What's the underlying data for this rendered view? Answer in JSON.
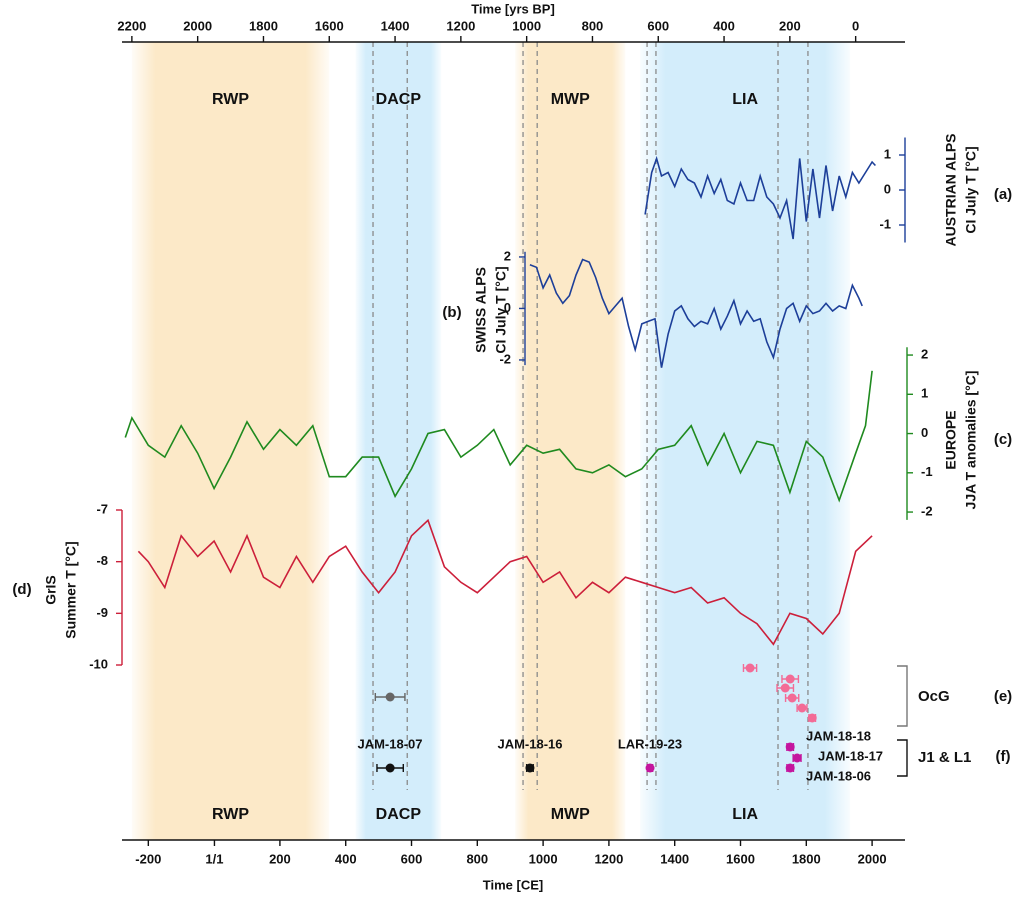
{
  "time_axes": {
    "x_label": "Time [CE]",
    "xlim": [
      -280,
      2100
    ],
    "xticks": [
      -200,
      {
        "value": 1,
        "label": "1/1"
      },
      200,
      400,
      600,
      800,
      1000,
      1200,
      1400,
      1600,
      1800,
      2000
    ],
    "x2_label": "Time [yrs BP]",
    "x2lim": [
      2230,
      -150
    ],
    "x2ticks": [
      2200,
      2000,
      1800,
      1600,
      1400,
      1200,
      1000,
      800,
      600,
      400,
      200,
      0
    ],
    "periods": [
      {
        "name": "RWP",
        "start": -250,
        "end": 350,
        "color": "#fce9c8",
        "label_color": "#9b1b1b"
      },
      {
        "name": "DACP",
        "start": 430,
        "end": 690,
        "color": "#d3edfb",
        "label_color": "#1e3fa8"
      },
      {
        "name": "MWP",
        "start": 915,
        "end": 1250,
        "color": "#fce9c8",
        "label_color": "#9b1b1b"
      },
      {
        "name": "LIA",
        "start": 1295,
        "end": 1933,
        "color": "#d3edfb",
        "label_color": "#1e3fa8"
      }
    ],
    "reference_lines": [
      483,
      587,
      939,
      982,
      1316,
      1343,
      1714,
      1805
    ],
    "reference_color": "#8a8a8a"
  },
  "chart_data": [
    {
      "type": "line",
      "label": "(a)",
      "y_label": [
        "AUSTRIAN ALPS",
        "CI July T [°C]"
      ],
      "color": "#1d3f99",
      "ylim": [
        -1.5,
        1.5
      ],
      "yticks": [
        -1,
        0,
        1
      ],
      "x": [
        1310,
        1330,
        1345,
        1360,
        1380,
        1400,
        1420,
        1440,
        1460,
        1480,
        1500,
        1520,
        1540,
        1560,
        1580,
        1600,
        1620,
        1640,
        1660,
        1680,
        1700,
        1720,
        1740,
        1760,
        1780,
        1800,
        1820,
        1840,
        1860,
        1880,
        1900,
        1920,
        1940,
        1960,
        1980,
        2000,
        2010
      ],
      "values": [
        -0.7,
        0.5,
        0.9,
        0.4,
        0.5,
        0.1,
        0.6,
        0.3,
        0.2,
        -0.2,
        0.4,
        -0.1,
        0.3,
        -0.3,
        -0.4,
        0.2,
        -0.3,
        -0.3,
        0.4,
        -0.2,
        -0.4,
        -0.8,
        -0.3,
        -1.4,
        0.9,
        -0.9,
        0.6,
        -0.8,
        0.7,
        -0.6,
        0.4,
        -0.2,
        0.5,
        0.2,
        0.5,
        0.8,
        0.7
      ]
    },
    {
      "type": "line",
      "label": "(b)",
      "y_label": [
        "SWISS ALPS",
        "CI July T [°C]"
      ],
      "color": "#1d3f99",
      "ylim": [
        -2.2,
        2.2
      ],
      "yticks": [
        -2,
        0,
        2
      ],
      "x": [
        960,
        980,
        1000,
        1020,
        1040,
        1060,
        1080,
        1100,
        1120,
        1140,
        1160,
        1180,
        1200,
        1220,
        1240,
        1260,
        1280,
        1300,
        1320,
        1340,
        1360,
        1380,
        1400,
        1420,
        1440,
        1460,
        1480,
        1500,
        1520,
        1540,
        1560,
        1580,
        1600,
        1620,
        1640,
        1660,
        1680,
        1700,
        1720,
        1740,
        1760,
        1780,
        1800,
        1820,
        1840,
        1860,
        1880,
        1900,
        1920,
        1940,
        1960,
        1970
      ],
      "values": [
        1.7,
        1.6,
        0.8,
        1.3,
        0.6,
        0.2,
        0.5,
        1.3,
        1.9,
        1.8,
        1.2,
        0.4,
        -0.2,
        0.1,
        0.4,
        -0.7,
        -1.6,
        -0.6,
        -0.5,
        -0.4,
        -2.3,
        -1.0,
        -0.1,
        0.1,
        -0.4,
        -0.7,
        -0.5,
        -0.6,
        0.0,
        -0.8,
        -0.3,
        0.3,
        -0.6,
        -0.1,
        -0.5,
        -0.4,
        -1.3,
        -1.9,
        -0.8,
        0.0,
        0.2,
        -0.5,
        0.1,
        -0.2,
        -0.1,
        0.2,
        -0.1,
        0.1,
        0.0,
        0.9,
        0.4,
        0.1
      ]
    },
    {
      "type": "line",
      "label": "(c)",
      "y_label": [
        "EUROPE",
        "JJA T anomalies [°C]"
      ],
      "color": "#1f8a1f",
      "ylim": [
        -2.2,
        2.2
      ],
      "yticks": [
        -2,
        -1,
        0,
        1,
        2
      ],
      "x": [
        -270,
        -250,
        -200,
        -150,
        -100,
        -50,
        0,
        50,
        100,
        150,
        200,
        250,
        300,
        350,
        400,
        450,
        500,
        550,
        600,
        650,
        700,
        750,
        800,
        850,
        900,
        950,
        1000,
        1050,
        1100,
        1150,
        1200,
        1250,
        1300,
        1350,
        1400,
        1450,
        1500,
        1550,
        1600,
        1650,
        1700,
        1750,
        1800,
        1850,
        1900,
        1950,
        1980,
        2000
      ],
      "values": [
        -0.1,
        0.4,
        -0.3,
        -0.6,
        0.2,
        -0.5,
        -1.4,
        -0.6,
        0.3,
        -0.4,
        0.1,
        -0.3,
        0.2,
        -1.1,
        -1.1,
        -0.6,
        -0.6,
        -1.6,
        -0.9,
        0.0,
        0.1,
        -0.6,
        -0.3,
        0.1,
        -0.8,
        -0.3,
        -0.5,
        -0.4,
        -0.9,
        -1.0,
        -0.8,
        -1.1,
        -0.9,
        -0.4,
        -0.3,
        0.2,
        -0.8,
        0.0,
        -1.0,
        -0.2,
        -0.3,
        -1.5,
        -0.2,
        -0.6,
        -1.7,
        -0.5,
        0.2,
        1.6
      ]
    },
    {
      "type": "line",
      "label": "(d)",
      "y_label": [
        "GrIS",
        "Summer T [°C]"
      ],
      "color": "#cc1f3a",
      "ylim": [
        -10,
        -7
      ],
      "yticks": [
        -10,
        -9,
        -8,
        -7
      ],
      "x": [
        -230,
        -200,
        -150,
        -100,
        -50,
        0,
        50,
        100,
        150,
        200,
        250,
        300,
        350,
        400,
        450,
        500,
        550,
        600,
        650,
        700,
        750,
        800,
        850,
        900,
        950,
        1000,
        1050,
        1100,
        1150,
        1200,
        1250,
        1300,
        1350,
        1400,
        1450,
        1500,
        1550,
        1600,
        1650,
        1700,
        1750,
        1800,
        1850,
        1900,
        1950,
        2000
      ],
      "values": [
        -7.8,
        -8.0,
        -8.5,
        -7.5,
        -7.9,
        -7.6,
        -8.2,
        -7.5,
        -8.3,
        -8.5,
        -7.9,
        -8.4,
        -7.9,
        -7.7,
        -8.2,
        -8.6,
        -8.2,
        -7.5,
        -7.2,
        -8.1,
        -8.4,
        -8.6,
        -8.3,
        -8.0,
        -7.9,
        -8.4,
        -8.2,
        -8.7,
        -8.4,
        -8.6,
        -8.3,
        -8.4,
        -8.5,
        -8.6,
        -8.5,
        -8.8,
        -8.7,
        -9.0,
        -9.2,
        -9.6,
        -9.0,
        -9.1,
        -9.4,
        -9.0,
        -7.8,
        -7.5
      ]
    },
    {
      "type": "scatter",
      "label": "(e)",
      "group_label": "OcG",
      "color": "#777777",
      "points": [
        {
          "age": 535,
          "error": 45,
          "color": "#666666"
        },
        {
          "age": 1629,
          "error": 20,
          "color": "#f36b96"
        },
        {
          "age": 1751,
          "error": 25,
          "color": "#f36b96"
        },
        {
          "age": 1736,
          "error": 25,
          "color": "#f36b96"
        },
        {
          "age": 1757,
          "error": 20,
          "color": "#f36b96"
        },
        {
          "age": 1787,
          "error": 15,
          "color": "#f36b96"
        },
        {
          "age": 1818,
          "error": 10,
          "color": "#f36b96"
        }
      ]
    },
    {
      "type": "scatter",
      "label": "(f)",
      "group_label": "J1 & L1",
      "color": "#111111",
      "points": [
        {
          "name": "JAM-18-07",
          "age": 535,
          "error": 40,
          "color": "#111111"
        },
        {
          "name": "JAM-18-16",
          "age": 960,
          "error": 10,
          "color": "#111111"
        },
        {
          "name": "LAR-19-23",
          "age": 1325,
          "error": 8,
          "color": "#c4159e"
        },
        {
          "name": "JAM-18-18",
          "age": 1751,
          "error": 10,
          "color": "#c4159e"
        },
        {
          "name": "JAM-18-17",
          "age": 1772,
          "error": 12,
          "color": "#c4159e"
        },
        {
          "name": "JAM-18-06",
          "age": 1751,
          "error": 10,
          "color": "#c4159e"
        }
      ]
    }
  ]
}
